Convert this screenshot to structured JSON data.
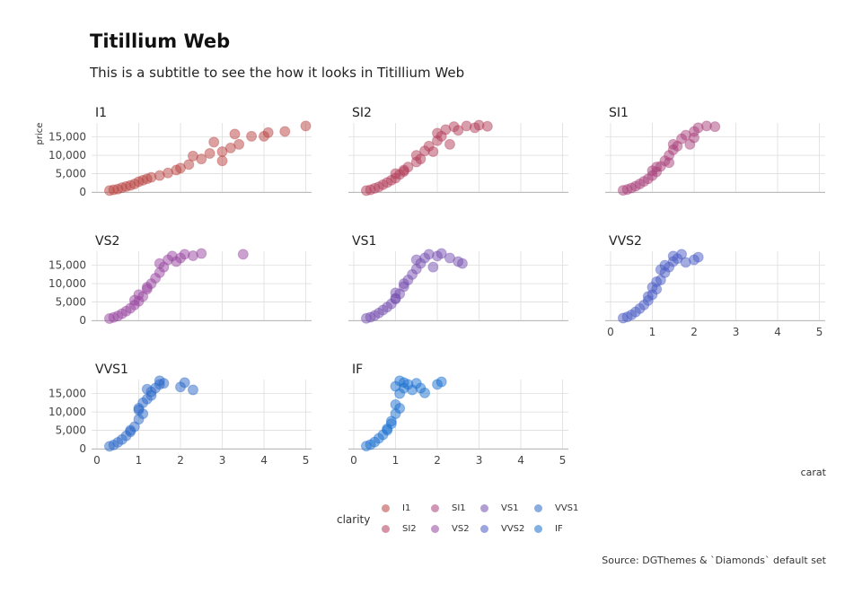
{
  "header": {
    "title": "Titillium Web",
    "subtitle": "This is a subtitle to see the how it looks in Titillium Web"
  },
  "caption": "Source: DGThemes & `Diamonds` default set",
  "chart_data": {
    "type": "scatter",
    "xlabel": "carat",
    "ylabel": "price",
    "xlim": [
      0,
      5.01
    ],
    "ylim": [
      0,
      18823
    ],
    "x_ticks": [
      "0",
      "1",
      "2",
      "3",
      "4",
      "5"
    ],
    "y_ticks": [
      "0",
      "5,000",
      "10,000",
      "15,000"
    ],
    "grid": true,
    "legend": {
      "title": "clarity",
      "position": "bottom",
      "items": [
        "I1",
        "SI2",
        "SI1",
        "VS2",
        "VS1",
        "VVS2",
        "VVS1",
        "IF"
      ]
    },
    "colors": {
      "I1": "#b8413f",
      "SI2": "#b23d5a",
      "SI1": "#a8407a",
      "VS2": "#9845a0",
      "VS1": "#754fb0",
      "VVS2": "#4a5bc4",
      "VVS1": "#2a68c8",
      "IF": "#1a6fd0"
    },
    "facets": [
      {
        "label": "I1",
        "points": [
          [
            0.3,
            400
          ],
          [
            0.4,
            600
          ],
          [
            0.5,
            800
          ],
          [
            0.6,
            1200
          ],
          [
            0.7,
            1500
          ],
          [
            0.8,
            1800
          ],
          [
            0.9,
            2200
          ],
          [
            1.0,
            2800
          ],
          [
            1.1,
            3200
          ],
          [
            1.2,
            3600
          ],
          [
            1.3,
            4000
          ],
          [
            1.5,
            4500
          ],
          [
            1.7,
            5200
          ],
          [
            1.9,
            6000
          ],
          [
            2.0,
            6500
          ],
          [
            2.2,
            7500
          ],
          [
            2.5,
            9000
          ],
          [
            2.7,
            10500
          ],
          [
            3.0,
            8500
          ],
          [
            3.0,
            11000
          ],
          [
            3.2,
            12000
          ],
          [
            3.4,
            13000
          ],
          [
            4.0,
            15200
          ],
          [
            4.5,
            16500
          ],
          [
            5.0,
            18000
          ],
          [
            3.7,
            15200
          ],
          [
            4.1,
            16200
          ],
          [
            3.3,
            15800
          ],
          [
            2.8,
            13600
          ],
          [
            2.3,
            9800
          ]
        ]
      },
      {
        "label": "SI2",
        "points": [
          [
            0.3,
            400
          ],
          [
            0.4,
            600
          ],
          [
            0.5,
            1000
          ],
          [
            0.6,
            1400
          ],
          [
            0.7,
            2000
          ],
          [
            0.8,
            2600
          ],
          [
            0.9,
            3200
          ],
          [
            1.0,
            3800
          ],
          [
            1.0,
            5000
          ],
          [
            1.1,
            4800
          ],
          [
            1.2,
            5600
          ],
          [
            1.3,
            6800
          ],
          [
            1.5,
            8200
          ],
          [
            1.5,
            10000
          ],
          [
            1.7,
            11200
          ],
          [
            1.8,
            12500
          ],
          [
            2.0,
            14000
          ],
          [
            2.0,
            16000
          ],
          [
            2.1,
            15200
          ],
          [
            2.2,
            17000
          ],
          [
            2.4,
            17800
          ],
          [
            2.5,
            16800
          ],
          [
            2.7,
            18000
          ],
          [
            2.9,
            17500
          ],
          [
            3.0,
            18200
          ],
          [
            3.2,
            17900
          ],
          [
            2.3,
            13000
          ],
          [
            1.9,
            11000
          ],
          [
            1.6,
            9000
          ],
          [
            1.2,
            6000
          ]
        ]
      },
      {
        "label": "SI1",
        "points": [
          [
            0.3,
            450
          ],
          [
            0.4,
            700
          ],
          [
            0.5,
            1100
          ],
          [
            0.6,
            1600
          ],
          [
            0.7,
            2200
          ],
          [
            0.8,
            2900
          ],
          [
            0.9,
            3600
          ],
          [
            1.0,
            4500
          ],
          [
            1.0,
            5800
          ],
          [
            1.1,
            5500
          ],
          [
            1.2,
            7000
          ],
          [
            1.3,
            8500
          ],
          [
            1.4,
            10000
          ],
          [
            1.5,
            11500
          ],
          [
            1.5,
            13000
          ],
          [
            1.6,
            12500
          ],
          [
            1.7,
            14500
          ],
          [
            1.8,
            15500
          ],
          [
            2.0,
            16500
          ],
          [
            2.1,
            17500
          ],
          [
            2.3,
            18000
          ],
          [
            2.5,
            17800
          ],
          [
            2.0,
            14800
          ],
          [
            1.9,
            13000
          ],
          [
            1.4,
            8000
          ],
          [
            1.1,
            6800
          ]
        ]
      },
      {
        "label": "VS2",
        "points": [
          [
            0.3,
            500
          ],
          [
            0.4,
            800
          ],
          [
            0.5,
            1200
          ],
          [
            0.6,
            1800
          ],
          [
            0.7,
            2500
          ],
          [
            0.8,
            3300
          ],
          [
            0.9,
            4200
          ],
          [
            1.0,
            5200
          ],
          [
            1.0,
            7000
          ],
          [
            1.1,
            6500
          ],
          [
            1.2,
            8500
          ],
          [
            1.3,
            10000
          ],
          [
            1.4,
            11500
          ],
          [
            1.5,
            13000
          ],
          [
            1.5,
            15500
          ],
          [
            1.6,
            14500
          ],
          [
            1.7,
            16500
          ],
          [
            1.8,
            17500
          ],
          [
            2.0,
            17000
          ],
          [
            2.1,
            18000
          ],
          [
            2.3,
            17600
          ],
          [
            2.5,
            18200
          ],
          [
            3.5,
            18000
          ],
          [
            1.9,
            16000
          ],
          [
            1.2,
            9000
          ],
          [
            0.9,
            5500
          ]
        ]
      },
      {
        "label": "VS1",
        "points": [
          [
            0.3,
            550
          ],
          [
            0.4,
            850
          ],
          [
            0.5,
            1300
          ],
          [
            0.6,
            2000
          ],
          [
            0.7,
            2800
          ],
          [
            0.8,
            3600
          ],
          [
            0.9,
            4500
          ],
          [
            1.0,
            5800
          ],
          [
            1.0,
            7500
          ],
          [
            1.1,
            7200
          ],
          [
            1.2,
            9200
          ],
          [
            1.3,
            11000
          ],
          [
            1.4,
            12500
          ],
          [
            1.5,
            14000
          ],
          [
            1.5,
            16500
          ],
          [
            1.6,
            15500
          ],
          [
            1.7,
            17000
          ],
          [
            1.8,
            18000
          ],
          [
            2.0,
            17500
          ],
          [
            2.1,
            18200
          ],
          [
            2.3,
            17000
          ],
          [
            2.5,
            16000
          ],
          [
            2.6,
            15500
          ],
          [
            1.9,
            14500
          ],
          [
            1.2,
            10000
          ],
          [
            1.0,
            6000
          ]
        ]
      },
      {
        "label": "VVS2",
        "points": [
          [
            0.3,
            600
          ],
          [
            0.4,
            950
          ],
          [
            0.5,
            1500
          ],
          [
            0.6,
            2300
          ],
          [
            0.7,
            3200
          ],
          [
            0.8,
            4200
          ],
          [
            0.9,
            5400
          ],
          [
            1.0,
            7000
          ],
          [
            1.0,
            9000
          ],
          [
            1.1,
            8500
          ],
          [
            1.2,
            11000
          ],
          [
            1.3,
            13000
          ],
          [
            1.4,
            14500
          ],
          [
            1.5,
            16000
          ],
          [
            1.5,
            17500
          ],
          [
            1.6,
            16800
          ],
          [
            1.7,
            18000
          ],
          [
            1.8,
            15800
          ],
          [
            2.0,
            16500
          ],
          [
            2.1,
            17200
          ],
          [
            1.2,
            13800
          ],
          [
            1.3,
            15000
          ],
          [
            1.1,
            10500
          ],
          [
            0.9,
            6500
          ]
        ]
      },
      {
        "label": "VVS1",
        "points": [
          [
            0.3,
            650
          ],
          [
            0.4,
            1000
          ],
          [
            0.5,
            1700
          ],
          [
            0.6,
            2500
          ],
          [
            0.7,
            3500
          ],
          [
            0.8,
            4600
          ],
          [
            0.9,
            6000
          ],
          [
            1.0,
            8000
          ],
          [
            1.0,
            10500
          ],
          [
            1.1,
            9500
          ],
          [
            1.1,
            12500
          ],
          [
            1.2,
            13500
          ],
          [
            1.3,
            15500
          ],
          [
            1.4,
            16500
          ],
          [
            1.5,
            17500
          ],
          [
            1.5,
            18500
          ],
          [
            1.6,
            17800
          ],
          [
            1.2,
            16200
          ],
          [
            1.3,
            14500
          ],
          [
            1.0,
            11000
          ],
          [
            2.0,
            16800
          ],
          [
            2.1,
            18000
          ],
          [
            2.3,
            16000
          ],
          [
            0.8,
            5000
          ]
        ]
      },
      {
        "label": "IF",
        "points": [
          [
            0.3,
            700
          ],
          [
            0.4,
            1100
          ],
          [
            0.5,
            1800
          ],
          [
            0.6,
            2800
          ],
          [
            0.7,
            3800
          ],
          [
            0.8,
            5000
          ],
          [
            0.9,
            6800
          ],
          [
            1.0,
            9500
          ],
          [
            1.0,
            12000
          ],
          [
            1.1,
            11000
          ],
          [
            1.1,
            15000
          ],
          [
            1.2,
            16500
          ],
          [
            1.2,
            18000
          ],
          [
            1.3,
            17500
          ],
          [
            1.4,
            16000
          ],
          [
            1.5,
            17800
          ],
          [
            1.6,
            16500
          ],
          [
            1.7,
            15200
          ],
          [
            1.0,
            17000
          ],
          [
            1.1,
            18500
          ],
          [
            2.0,
            17500
          ],
          [
            2.1,
            18200
          ],
          [
            0.8,
            5400
          ],
          [
            0.9,
            7500
          ]
        ]
      }
    ]
  }
}
